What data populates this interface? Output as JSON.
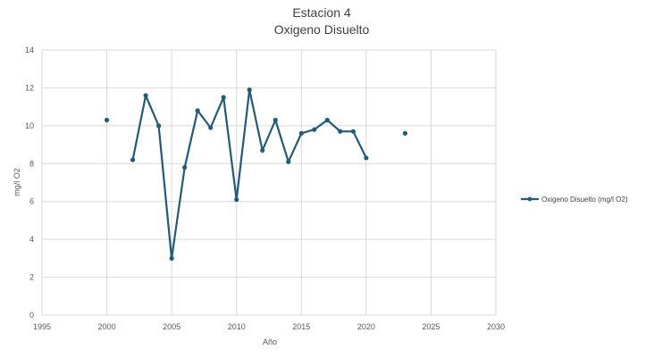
{
  "chart_data": {
    "type": "line",
    "title": "Estacion 4",
    "subtitle": "Oxigeno Disuelto",
    "xlabel": "Año",
    "ylabel": "mg/l O2",
    "xlim": [
      1995,
      2030
    ],
    "ylim": [
      0,
      14
    ],
    "xticks": [
      1995,
      2000,
      2005,
      2010,
      2015,
      2020,
      2025,
      2030
    ],
    "yticks": [
      0,
      2,
      4,
      6,
      8,
      10,
      12,
      14
    ],
    "grid": true,
    "legend_position": "right",
    "series": [
      {
        "name": "Oxigeno Disuelto (mg/l O2)",
        "color": "#1f5c7a",
        "points": [
          {
            "x": 2000,
            "y": 10.3
          },
          {
            "x": 2001,
            "y": null
          },
          {
            "x": 2002,
            "y": 8.2
          },
          {
            "x": 2003,
            "y": 11.6
          },
          {
            "x": 2004,
            "y": 10.0
          },
          {
            "x": 2005,
            "y": 3.0
          },
          {
            "x": 2006,
            "y": 7.8
          },
          {
            "x": 2007,
            "y": 10.8
          },
          {
            "x": 2008,
            "y": 9.9
          },
          {
            "x": 2009,
            "y": 11.5
          },
          {
            "x": 2010,
            "y": 6.1
          },
          {
            "x": 2011,
            "y": 11.9
          },
          {
            "x": 2012,
            "y": 8.7
          },
          {
            "x": 2013,
            "y": 10.3
          },
          {
            "x": 2014,
            "y": 8.1
          },
          {
            "x": 2015,
            "y": 9.6
          },
          {
            "x": 2016,
            "y": 9.8
          },
          {
            "x": 2017,
            "y": 10.3
          },
          {
            "x": 2018,
            "y": 9.7
          },
          {
            "x": 2019,
            "y": 9.7
          },
          {
            "x": 2020,
            "y": 8.3
          },
          {
            "x": 2021,
            "y": null
          },
          {
            "x": 2022,
            "y": null
          },
          {
            "x": 2023,
            "y": 9.6
          }
        ]
      }
    ]
  }
}
